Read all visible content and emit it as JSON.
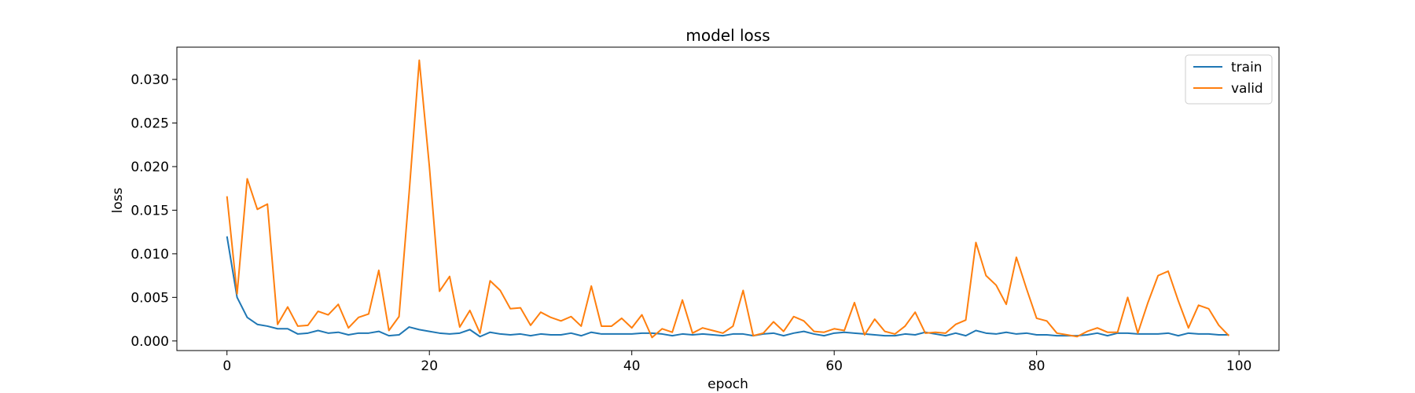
{
  "chart_data": {
    "type": "line",
    "title": "model loss",
    "xlabel": "epoch",
    "ylabel": "loss",
    "xlim": [
      -4.95,
      103.95
    ],
    "ylim": [
      -0.0011,
      0.0337
    ],
    "xticks": [
      0,
      20,
      40,
      60,
      80,
      100
    ],
    "xtick_labels": [
      "0",
      "20",
      "40",
      "60",
      "80",
      "100"
    ],
    "yticks": [
      0.0,
      0.005,
      0.01,
      0.015,
      0.02,
      0.025,
      0.03
    ],
    "ytick_labels": [
      "0.000",
      "0.005",
      "0.010",
      "0.015",
      "0.020",
      "0.025",
      "0.030"
    ],
    "grid": false,
    "legend_position": "upper right",
    "x": [
      0,
      1,
      2,
      3,
      4,
      5,
      6,
      7,
      8,
      9,
      10,
      11,
      12,
      13,
      14,
      15,
      16,
      17,
      18,
      19,
      20,
      21,
      22,
      23,
      24,
      25,
      26,
      27,
      28,
      29,
      30,
      31,
      32,
      33,
      34,
      35,
      36,
      37,
      38,
      39,
      40,
      41,
      42,
      43,
      44,
      45,
      46,
      47,
      48,
      49,
      50,
      51,
      52,
      53,
      54,
      55,
      56,
      57,
      58,
      59,
      60,
      61,
      62,
      63,
      64,
      65,
      66,
      67,
      68,
      69,
      70,
      71,
      72,
      73,
      74,
      75,
      76,
      77,
      78,
      79,
      80,
      81,
      82,
      83,
      84,
      85,
      86,
      87,
      88,
      89,
      90,
      91,
      92,
      93,
      94,
      95,
      96,
      97,
      98,
      99
    ],
    "series": [
      {
        "name": "train",
        "color": "#1f77b4",
        "values": [
          0.012,
          0.005,
          0.0027,
          0.0019,
          0.0017,
          0.0014,
          0.0014,
          0.0008,
          0.0009,
          0.0012,
          0.0009,
          0.001,
          0.0007,
          0.0009,
          0.0009,
          0.0011,
          0.0006,
          0.0007,
          0.0016,
          0.0013,
          0.0011,
          0.0009,
          0.0008,
          0.0009,
          0.0013,
          0.0005,
          0.001,
          0.0008,
          0.0007,
          0.0008,
          0.0006,
          0.0008,
          0.0007,
          0.0007,
          0.0009,
          0.0006,
          0.001,
          0.0008,
          0.0008,
          0.0008,
          0.0008,
          0.0009,
          0.0009,
          0.0008,
          0.0006,
          0.0008,
          0.0007,
          0.0008,
          0.0007,
          0.0006,
          0.0008,
          0.0008,
          0.0006,
          0.0008,
          0.0009,
          0.0006,
          0.0009,
          0.0011,
          0.0008,
          0.0006,
          0.0009,
          0.001,
          0.0009,
          0.0008,
          0.0007,
          0.0006,
          0.0006,
          0.0008,
          0.0007,
          0.001,
          0.0008,
          0.0006,
          0.0009,
          0.0006,
          0.0012,
          0.0009,
          0.0008,
          0.001,
          0.0008,
          0.0009,
          0.0007,
          0.0007,
          0.0006,
          0.0006,
          0.0006,
          0.0007,
          0.0009,
          0.0006,
          0.0009,
          0.0009,
          0.0008,
          0.0008,
          0.0008,
          0.0009,
          0.0006,
          0.0009,
          0.0008,
          0.0008,
          0.0007,
          0.0007
        ]
      },
      {
        "name": "valid",
        "color": "#ff7f0e",
        "values": [
          0.0166,
          0.0054,
          0.0186,
          0.0151,
          0.0157,
          0.0019,
          0.0039,
          0.0017,
          0.0018,
          0.0034,
          0.003,
          0.0042,
          0.0015,
          0.0027,
          0.0031,
          0.0081,
          0.0012,
          0.0028,
          0.017,
          0.0322,
          0.02,
          0.0057,
          0.0074,
          0.0016,
          0.0035,
          0.0009,
          0.0069,
          0.0058,
          0.0037,
          0.0038,
          0.0018,
          0.0033,
          0.0027,
          0.0023,
          0.0028,
          0.0017,
          0.0063,
          0.0017,
          0.0017,
          0.0026,
          0.0015,
          0.003,
          0.0004,
          0.0014,
          0.001,
          0.0047,
          0.0009,
          0.0015,
          0.0012,
          0.0009,
          0.0017,
          0.0058,
          0.0006,
          0.0009,
          0.0022,
          0.0011,
          0.0028,
          0.0023,
          0.0011,
          0.001,
          0.0014,
          0.0012,
          0.0044,
          0.0007,
          0.0025,
          0.0011,
          0.0008,
          0.0017,
          0.0033,
          0.0009,
          0.001,
          0.0009,
          0.0019,
          0.0024,
          0.0113,
          0.0075,
          0.0064,
          0.0042,
          0.0096,
          0.006,
          0.0026,
          0.0023,
          0.0009,
          0.0007,
          0.0005,
          0.0011,
          0.0015,
          0.001,
          0.001,
          0.005,
          0.0009,
          0.0044,
          0.0075,
          0.008,
          0.0046,
          0.0015,
          0.0041,
          0.0037,
          0.0018,
          0.0006
        ]
      }
    ]
  }
}
